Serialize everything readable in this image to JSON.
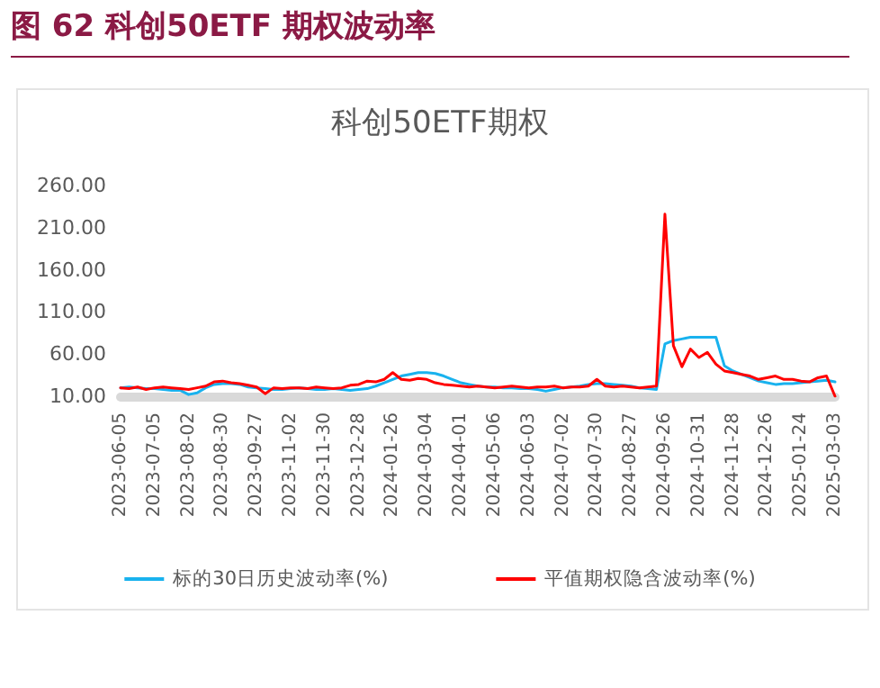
{
  "chart_data": {
    "type": "line",
    "title": "图 62 科创50ETF 期权波动率",
    "subtitle": "科创50ETF期权",
    "categories": [
      "2023-06-05",
      null,
      null,
      null,
      "2023-07-05",
      null,
      null,
      null,
      "2023-08-02",
      null,
      null,
      null,
      "2023-08-30",
      null,
      null,
      null,
      "2023-09-27",
      null,
      null,
      null,
      "2023-11-02",
      null,
      null,
      null,
      "2023-11-30",
      null,
      null,
      null,
      "2023-12-28",
      null,
      null,
      null,
      "2024-01-26",
      null,
      null,
      null,
      "2024-03-04",
      null,
      null,
      null,
      "2024-04-01",
      null,
      null,
      null,
      "2024-05-06",
      null,
      null,
      null,
      "2024-06-03",
      null,
      null,
      null,
      "2024-07-02",
      null,
      null,
      null,
      "2024-07-30",
      null,
      null,
      null,
      "2024-08-27",
      null,
      null,
      null,
      "2024-09-26",
      null,
      null,
      null,
      "2024-10-31",
      null,
      null,
      null,
      "2024-11-28",
      null,
      null,
      null,
      "2024-12-26",
      null,
      null,
      null,
      "2025-01-24",
      null,
      null,
      null,
      "2025-03-03"
    ],
    "series": [
      {
        "name": "标的30日历史波动率(%)",
        "color": "#19b2ee",
        "values": [
          20,
          21,
          20,
          19,
          19,
          18,
          17,
          17,
          12,
          14,
          20,
          24,
          25,
          25,
          24,
          21,
          20,
          19,
          18,
          18,
          19,
          20,
          19,
          18,
          18,
          19,
          18,
          17,
          18,
          19,
          22,
          26,
          30,
          34,
          36,
          38,
          38,
          37,
          34,
          30,
          26,
          24,
          22,
          21,
          21,
          20,
          20,
          19,
          19,
          18,
          16,
          18,
          20,
          21,
          22,
          24,
          25,
          25,
          24,
          23,
          22,
          20,
          19,
          18,
          72,
          76,
          78,
          80,
          80,
          80,
          80,
          46,
          40,
          36,
          32,
          28,
          26,
          24,
          25,
          25,
          26,
          27,
          28,
          29,
          27
        ]
      },
      {
        "name": "平值期权隐含波动率(%)",
        "color": "#ff0000",
        "values": [
          20,
          19,
          21,
          18,
          20,
          21,
          20,
          19,
          18,
          20,
          22,
          27,
          28,
          26,
          25,
          23,
          21,
          13,
          20,
          19,
          20,
          20,
          19,
          21,
          20,
          19,
          20,
          23,
          24,
          28,
          27,
          30,
          38,
          30,
          29,
          31,
          30,
          26,
          24,
          23,
          22,
          21,
          22,
          21,
          20,
          21,
          22,
          21,
          20,
          21,
          21,
          22,
          20,
          21,
          21,
          22,
          30,
          22,
          21,
          22,
          21,
          20,
          21,
          22,
          226,
          70,
          45,
          66,
          56,
          62,
          48,
          40,
          38,
          36,
          34,
          30,
          32,
          34,
          30,
          30,
          28,
          27,
          32,
          34,
          10
        ]
      }
    ],
    "ylim": [
      10,
      260
    ],
    "yticks": [
      {
        "value": 10,
        "label": "10.00"
      },
      {
        "value": 60,
        "label": "60.00"
      },
      {
        "value": 110,
        "label": "110.00"
      },
      {
        "value": 160,
        "label": "160.00"
      },
      {
        "value": 210,
        "label": "210.00"
      },
      {
        "value": 260,
        "label": "260.00"
      }
    ],
    "legend": "bottom",
    "marker": "none",
    "line_style": "solid"
  }
}
